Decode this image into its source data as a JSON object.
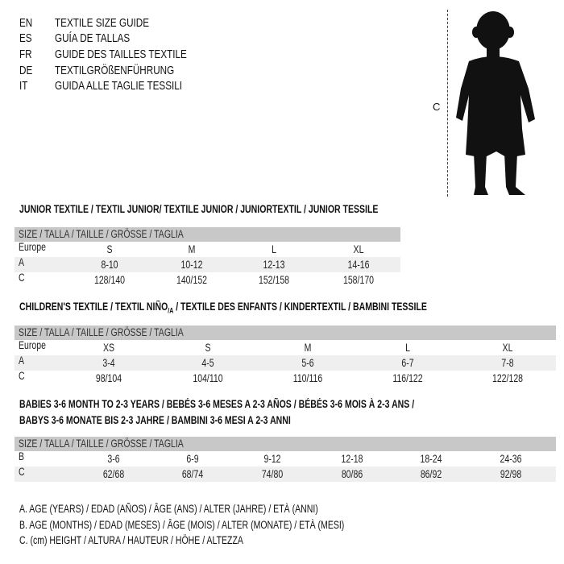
{
  "languages": [
    {
      "code": "EN",
      "text": "TEXTILE SIZE GUIDE"
    },
    {
      "code": "ES",
      "text": "GUÍA DE TALLAS"
    },
    {
      "code": "FR",
      "text": "GUIDE DES TAILLES TEXTILE"
    },
    {
      "code": "DE",
      "text": "TEXTILGRÖßENFÜHRUNG"
    },
    {
      "code": "IT",
      "text": "GUIDA ALLE TAGLIE TESSILI"
    }
  ],
  "figure": {
    "measure_label": "C"
  },
  "junior": {
    "title": "JUNIOR TEXTILE / TEXTIL JUNIOR/ TEXTILE JUNIOR / JUNIORTEXTIL / JUNIOR TESSILE",
    "header": "SIZE / TALLA / TAILLE / GRÖSSE / TAGLIA",
    "rows": [
      {
        "label": "Europe",
        "values": [
          "S",
          "M",
          "L",
          "XL"
        ]
      },
      {
        "label": "A",
        "values": [
          "8-10",
          "10-12",
          "12-13",
          "14-16"
        ]
      },
      {
        "label": "C",
        "values": [
          "128/140",
          "140/152",
          "152/158",
          "158/170"
        ]
      }
    ]
  },
  "children": {
    "title_a": "CHILDREN'S TEXTILE / TEXTIL NIÑO",
    "title_sub": "/A",
    "title_b": " / TEXTILE DES ENFANTS / KINDERTEXTIL / BAMBINI TESSILE",
    "header": "SIZE / TALLA / TAILLE / GRÖSSE / TAGLIA",
    "rows": [
      {
        "label": "Europe",
        "values": [
          "XS",
          "S",
          "M",
          "L",
          "XL"
        ]
      },
      {
        "label": "A",
        "values": [
          "3-4",
          "4-5",
          "5-6",
          "6-7",
          "7-8"
        ]
      },
      {
        "label": "C",
        "values": [
          "98/104",
          "104/110",
          "110/116",
          "116/122",
          "122/128"
        ]
      }
    ]
  },
  "babies": {
    "title_line1": "BABIES 3-6 MONTH TO 2-3 YEARS / BEBÉS 3-6 MESES A 2-3 AÑOS / BÉBÉS 3-6 MOIS À 2-3 ANS /",
    "title_line2": "BABYS 3-6 MONATE BIS 2-3 JAHRE / BAMBINI 3-6 MESI A 2-3 ANNI",
    "header": "SIZE / TALLA / TAILLE / GRÖSSE / TAGLIA",
    "rows": [
      {
        "label": "B",
        "values": [
          "3-6",
          "6-9",
          "9-12",
          "12-18",
          "18-24",
          "24-36"
        ]
      },
      {
        "label": "C",
        "values": [
          "62/68",
          "68/74",
          "74/80",
          "80/86",
          "86/92",
          "92/98"
        ]
      }
    ]
  },
  "legend": [
    "A. AGE (YEARS) / EDAD (AÑOS) / ÂGE (ANS) / ALTER (JAHRE) / ETÀ (ANNI)",
    "B. AGE (MONTHS) / EDAD (MESES) / ÂGE (MOIS) / ALTER (MONATE) / ETÀ (MESI)",
    "C. (cm) HEIGHT / ALTURA / HAUTEUR / HÖHE / ALTEZZA"
  ]
}
